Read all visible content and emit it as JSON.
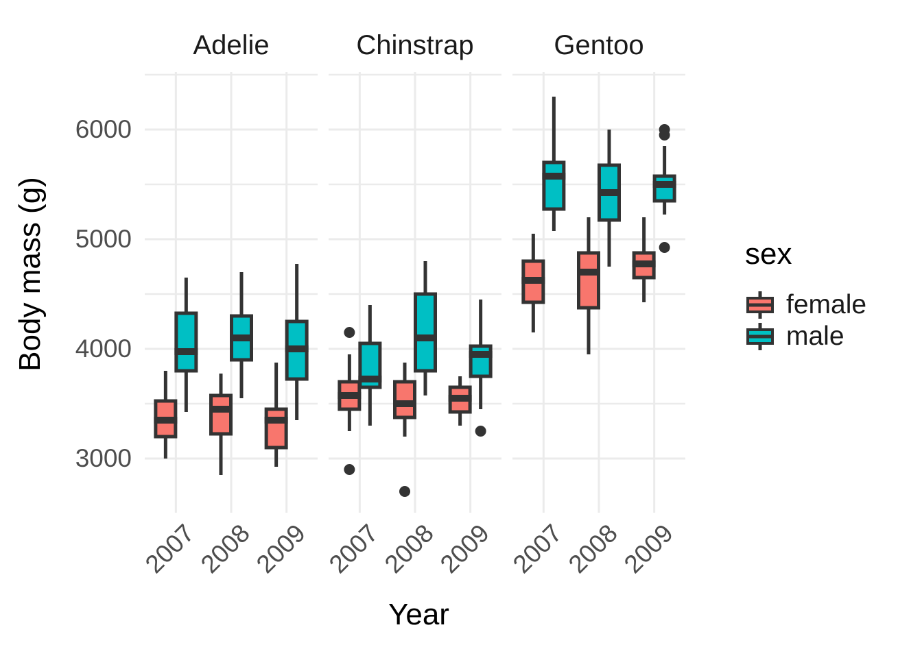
{
  "chart_data": {
    "type": "boxplot",
    "title": "",
    "xlabel": "Year",
    "ylabel": "Body mass (g)",
    "facets": [
      "Adelie",
      "Chinstrap",
      "Gentoo"
    ],
    "categories": [
      "2007",
      "2008",
      "2009"
    ],
    "y_axis": {
      "ticks": [
        6000,
        5000,
        4000,
        3000
      ],
      "tick_labels": [
        "6000",
        "5000",
        "4000",
        "3000"
      ],
      "minor_gridlines": [
        6500,
        5500,
        4500,
        3500,
        2500
      ],
      "range": [
        2500,
        6525
      ],
      "grid": true
    },
    "legend": {
      "title": "sex",
      "position": "right",
      "entries": [
        {
          "label": "female",
          "sex": "female",
          "color": "#F8766D"
        },
        {
          "label": "male",
          "sex": "male",
          "color": "#00BFC4"
        }
      ]
    },
    "colors": {
      "grid": "#EBEBEB",
      "box_stroke": "#333333",
      "outlier": "#333333",
      "tick_label": "#4D4D4D",
      "background": "#FFFFFF"
    },
    "series": [
      {
        "facet": "Adelie",
        "year": "2007",
        "sex": "female",
        "min": 3000,
        "q1": 3200,
        "median": 3350,
        "q3": 3525,
        "max": 3800,
        "outliers": []
      },
      {
        "facet": "Adelie",
        "year": "2007",
        "sex": "male",
        "min": 3425,
        "q1": 3800,
        "median": 3975,
        "q3": 4325,
        "max": 4650,
        "outliers": []
      },
      {
        "facet": "Adelie",
        "year": "2008",
        "sex": "female",
        "min": 2850,
        "q1": 3225,
        "median": 3450,
        "q3": 3575,
        "max": 3775,
        "outliers": []
      },
      {
        "facet": "Adelie",
        "year": "2008",
        "sex": "male",
        "min": 3550,
        "q1": 3900,
        "median": 4100,
        "q3": 4300,
        "max": 4700,
        "outliers": []
      },
      {
        "facet": "Adelie",
        "year": "2009",
        "sex": "female",
        "min": 2925,
        "q1": 3100,
        "median": 3350,
        "q3": 3450,
        "max": 3875,
        "outliers": []
      },
      {
        "facet": "Adelie",
        "year": "2009",
        "sex": "male",
        "min": 3350,
        "q1": 3725,
        "median": 4000,
        "q3": 4250,
        "max": 4775,
        "outliers": []
      },
      {
        "facet": "Chinstrap",
        "year": "2007",
        "sex": "female",
        "min": 3250,
        "q1": 3450,
        "median": 3575,
        "q3": 3700,
        "max": 3950,
        "outliers": [
          4150,
          2900
        ]
      },
      {
        "facet": "Chinstrap",
        "year": "2007",
        "sex": "male",
        "min": 3300,
        "q1": 3650,
        "median": 3725,
        "q3": 4050,
        "max": 4400,
        "outliers": []
      },
      {
        "facet": "Chinstrap",
        "year": "2008",
        "sex": "female",
        "min": 3200,
        "q1": 3375,
        "median": 3500,
        "q3": 3700,
        "max": 3875,
        "outliers": [
          2700
        ]
      },
      {
        "facet": "Chinstrap",
        "year": "2008",
        "sex": "male",
        "min": 3575,
        "q1": 3800,
        "median": 4100,
        "q3": 4500,
        "max": 4800,
        "outliers": []
      },
      {
        "facet": "Chinstrap",
        "year": "2009",
        "sex": "female",
        "min": 3300,
        "q1": 3425,
        "median": 3550,
        "q3": 3650,
        "max": 3750,
        "outliers": []
      },
      {
        "facet": "Chinstrap",
        "year": "2009",
        "sex": "male",
        "min": 3450,
        "q1": 3750,
        "median": 3950,
        "q3": 4025,
        "max": 4450,
        "outliers": [
          3250
        ]
      },
      {
        "facet": "Gentoo",
        "year": "2007",
        "sex": "female",
        "min": 4150,
        "q1": 4425,
        "median": 4625,
        "q3": 4800,
        "max": 5050,
        "outliers": []
      },
      {
        "facet": "Gentoo",
        "year": "2007",
        "sex": "male",
        "min": 5075,
        "q1": 5275,
        "median": 5575,
        "q3": 5700,
        "max": 6300,
        "outliers": []
      },
      {
        "facet": "Gentoo",
        "year": "2008",
        "sex": "female",
        "min": 3950,
        "q1": 4375,
        "median": 4700,
        "q3": 4875,
        "max": 5200,
        "outliers": []
      },
      {
        "facet": "Gentoo",
        "year": "2008",
        "sex": "male",
        "min": 4750,
        "q1": 5175,
        "median": 5425,
        "q3": 5675,
        "max": 6000,
        "outliers": []
      },
      {
        "facet": "Gentoo",
        "year": "2009",
        "sex": "female",
        "min": 4425,
        "q1": 4650,
        "median": 4775,
        "q3": 4875,
        "max": 5200,
        "outliers": []
      },
      {
        "facet": "Gentoo",
        "year": "2009",
        "sex": "male",
        "min": 5225,
        "q1": 5350,
        "median": 5500,
        "q3": 5575,
        "max": 5850,
        "outliers": [
          6000,
          5950,
          4925
        ]
      }
    ]
  }
}
